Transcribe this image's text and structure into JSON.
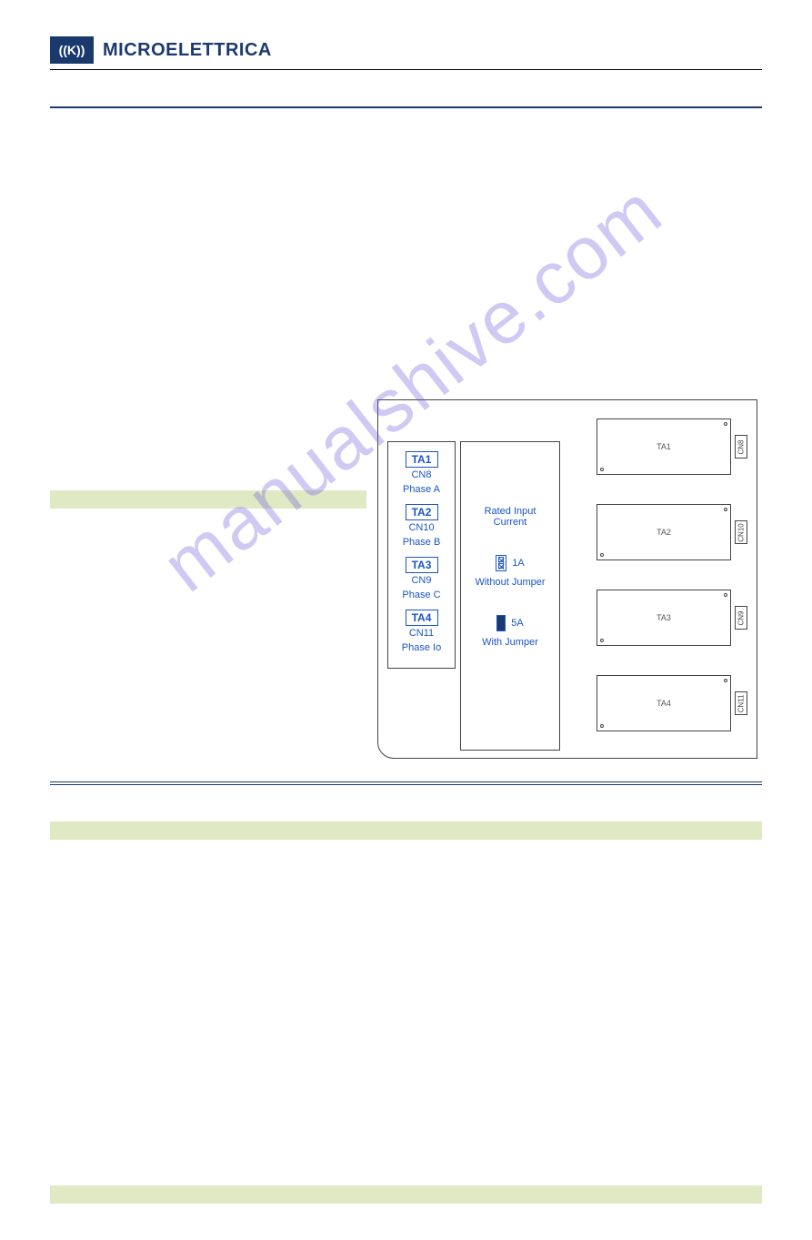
{
  "brand": "MICROELETTRICA",
  "logo_glyph": "((K))",
  "diagram": {
    "rated_label": "Rated Input\nCurrent",
    "without_jumper": "Without Jumper",
    "with_jumper": "With Jumper",
    "amp1": "1A",
    "amp5": "5A",
    "channels": [
      {
        "ta": "TA1",
        "cn": "CN8",
        "phase": "Phase A"
      },
      {
        "ta": "TA2",
        "cn": "CN10",
        "phase": "Phase B"
      },
      {
        "ta": "TA3",
        "cn": "CN9",
        "phase": "Phase C"
      },
      {
        "ta": "TA4",
        "cn": "CN11",
        "phase": "Phase Io"
      }
    ],
    "modules": [
      {
        "label": "TA1",
        "side": "CN8"
      },
      {
        "label": "TA2",
        "side": "CN10"
      },
      {
        "label": "TA3",
        "side": "CN9"
      },
      {
        "label": "TA4",
        "side": "CN11"
      }
    ]
  },
  "watermark": "manualshive.com",
  "colors": {
    "brand": "#1a3a6e",
    "green_bar": "#dfe9c3",
    "diagram_text": "#1a55c4"
  }
}
